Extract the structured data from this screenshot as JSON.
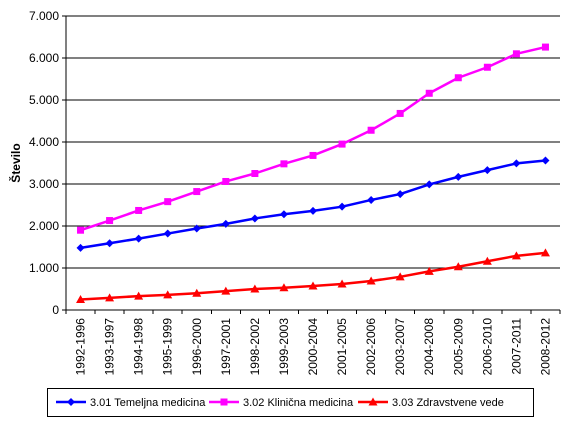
{
  "chart_data": {
    "type": "line",
    "title": "",
    "xlabel": "",
    "ylabel": "Število",
    "ylim": [
      0,
      7000
    ],
    "y_tick_values": [
      0,
      1000,
      2000,
      3000,
      4000,
      5000,
      6000,
      7000
    ],
    "y_tick_labels": [
      "0",
      "1.000",
      "2.000",
      "3.000",
      "4.000",
      "5.000",
      "6.000",
      "7.000"
    ],
    "categories": [
      "1992-1996",
      "1993-1997",
      "1994-1998",
      "1995-1999",
      "1996-2000",
      "1997-2001",
      "1998-2002",
      "1999-2003",
      "2000-2004",
      "2001-2005",
      "2002-2006",
      "2003-2007",
      "2004-2008",
      "2005-2009",
      "2006-2010",
      "2007-2011",
      "2008-2012"
    ],
    "series": [
      {
        "name": "3.01 Temeljna medicina",
        "color": "#0000ff",
        "marker": "diamond",
        "values": [
          1480,
          1590,
          1700,
          1820,
          1940,
          2050,
          2180,
          2280,
          2360,
          2460,
          2620,
          2760,
          2990,
          3170,
          3330,
          3490,
          3560
        ]
      },
      {
        "name": "3.02 Klinična medicina",
        "color": "#ff00ff",
        "marker": "square",
        "values": [
          1900,
          2130,
          2370,
          2580,
          2820,
          3060,
          3250,
          3480,
          3680,
          3950,
          4280,
          4680,
          5160,
          5530,
          5780,
          6100,
          6260
        ]
      },
      {
        "name": "3.03 Zdravstvene vede",
        "color": "#ff0000",
        "marker": "triangle",
        "values": [
          250,
          290,
          330,
          360,
          400,
          450,
          500,
          530,
          570,
          620,
          690,
          790,
          920,
          1030,
          1160,
          1290,
          1360
        ]
      }
    ],
    "grid": {
      "horizontal": true,
      "vertical": false
    },
    "legend": {
      "position": "bottom"
    }
  }
}
